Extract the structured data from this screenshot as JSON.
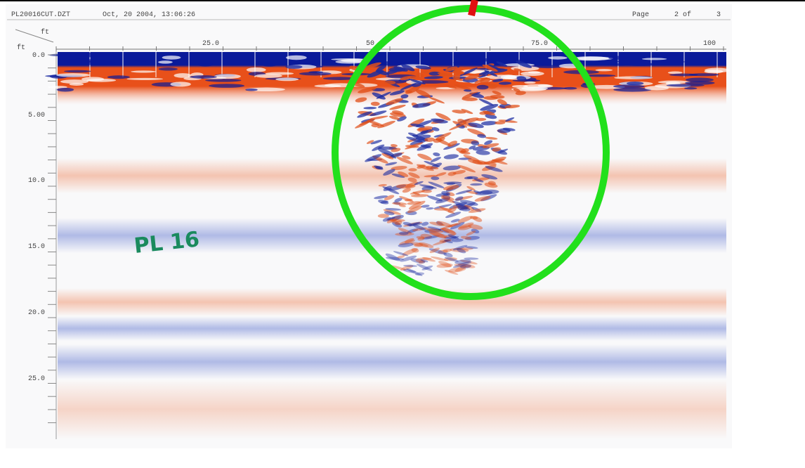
{
  "header": {
    "file": "PL20016CUT.DZT",
    "date": "Oct, 20 2004, 13:06:26",
    "page": "Page",
    "page_num": "2 of",
    "page_total": "3"
  },
  "x_axis": {
    "unit": "ft",
    "labels": [
      "25.0",
      "50",
      "75.0",
      "100"
    ]
  },
  "y_axis": {
    "unit": "ft",
    "labels": [
      "0.0",
      "5.00",
      "10.0",
      "15.0",
      "20.0",
      "25.0"
    ]
  },
  "annotation": "PL 16"
}
